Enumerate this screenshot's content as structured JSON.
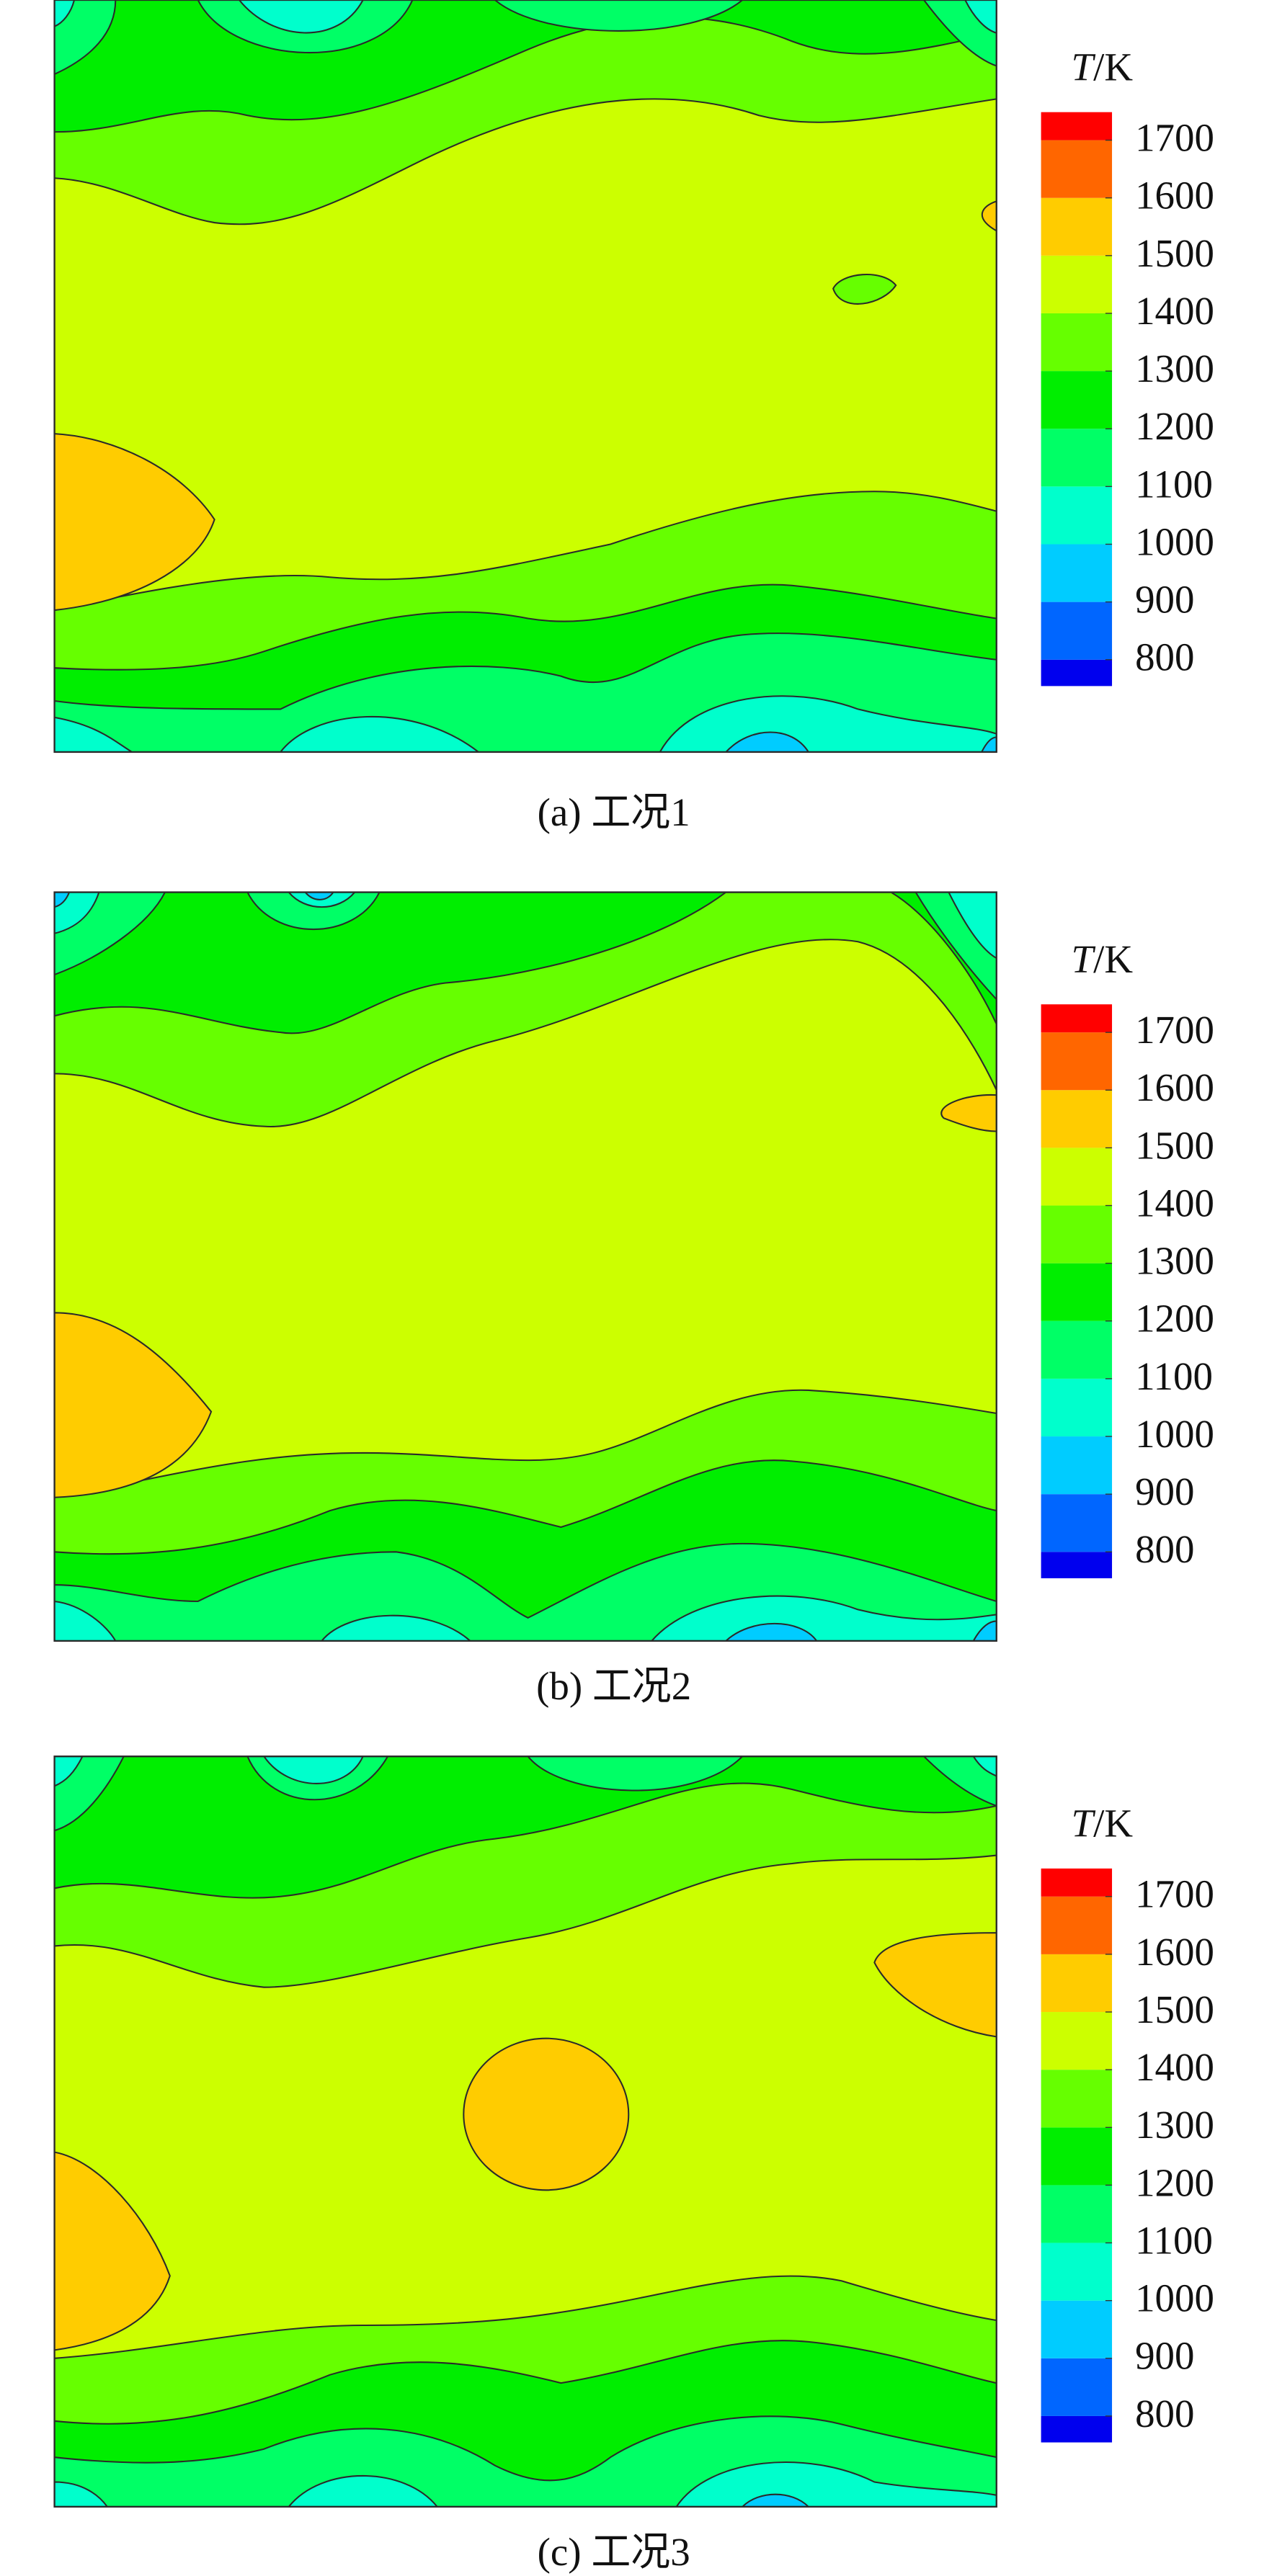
{
  "chart_data": [
    {
      "type": "contour",
      "caption": "(a) 工况1",
      "colorbar_label": {
        "symbol": "T",
        "unit": "/K"
      },
      "colorbar_ticks": [
        800,
        900,
        1000,
        1100,
        1200,
        1300,
        1400,
        1500,
        1600,
        1700
      ],
      "colors": [
        "#0000ee",
        "#0066ff",
        "#00ccff",
        "#00ffcc",
        "#00ff66",
        "#00ee00",
        "#66ff00",
        "#ccff00",
        "#ffcc00",
        "#ff6600",
        "#ff0000"
      ]
    },
    {
      "type": "contour",
      "caption": "(b) 工况2",
      "colorbar_label": {
        "symbol": "T",
        "unit": "/K"
      },
      "colorbar_ticks": [
        800,
        900,
        1000,
        1100,
        1200,
        1300,
        1400,
        1500,
        1600,
        1700
      ],
      "colors": [
        "#0000ee",
        "#0066ff",
        "#00ccff",
        "#00ffcc",
        "#00ff66",
        "#00ee00",
        "#66ff00",
        "#ccff00",
        "#ffcc00",
        "#ff6600",
        "#ff0000"
      ]
    },
    {
      "type": "contour",
      "caption": "(c) 工况3",
      "colorbar_label": {
        "symbol": "T",
        "unit": "/K"
      },
      "colorbar_ticks": [
        800,
        900,
        1000,
        1100,
        1200,
        1300,
        1400,
        1500,
        1600,
        1700
      ],
      "colors": [
        "#0000ee",
        "#0066ff",
        "#00ccff",
        "#00ffcc",
        "#00ff66",
        "#00ee00",
        "#66ff00",
        "#ccff00",
        "#ffcc00",
        "#ff6600",
        "#ff0000"
      ]
    }
  ]
}
